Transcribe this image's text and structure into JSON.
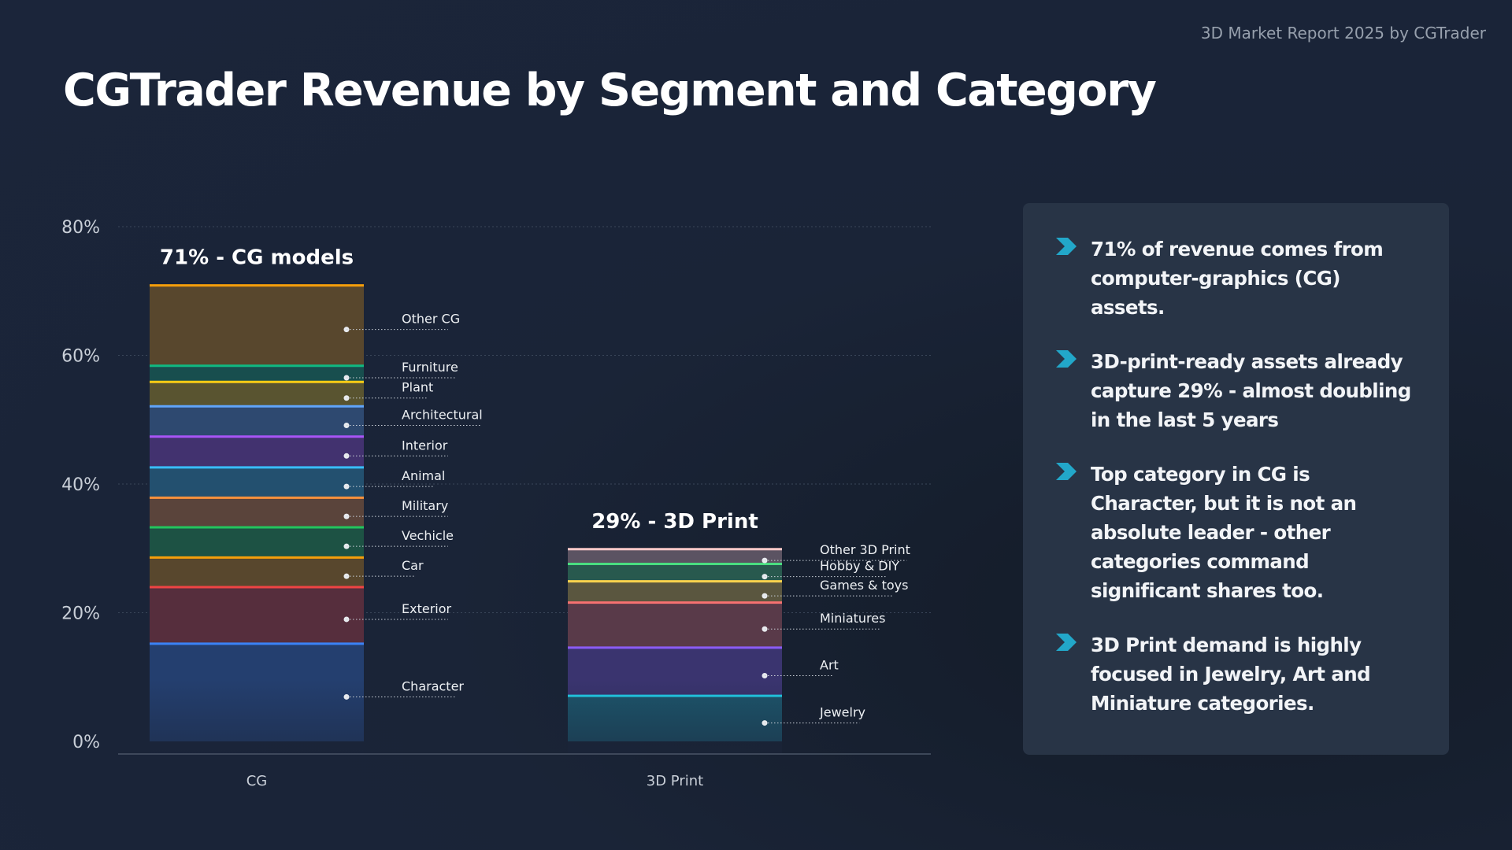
{
  "source": "3D Market Report 2025 by CGTrader",
  "title": "CGTrader Revenue by Segment and Category",
  "chart_data": {
    "type": "bar",
    "stacked": true,
    "ylim": [
      0,
      80
    ],
    "yticks": [
      "0%",
      "20%",
      "40%",
      "60%",
      "80%"
    ],
    "grid": true,
    "categories": [
      "CG",
      "3D Print"
    ],
    "bars": [
      {
        "category": "CG",
        "annotation": "71% - CG models",
        "segments": [
          {
            "name": "Character",
            "value": 15.3,
            "color": "#3b82f6"
          },
          {
            "name": "Exterior",
            "value": 8.8,
            "color": "#ef4444"
          },
          {
            "name": "Car",
            "value": 4.6,
            "color": "#f59e0b"
          },
          {
            "name": "Vechicle",
            "value": 4.7,
            "color": "#22c55e"
          },
          {
            "name": "Military",
            "value": 4.6,
            "color": "#fb923c"
          },
          {
            "name": "Animal",
            "value": 4.7,
            "color": "#38bdf8"
          },
          {
            "name": "Interior",
            "value": 4.8,
            "color": "#a855f7"
          },
          {
            "name": "Architectural",
            "value": 4.7,
            "color": "#60a5fa"
          },
          {
            "name": "Plant",
            "value": 3.8,
            "color": "#facc15"
          },
          {
            "name": "Furniture",
            "value": 2.5,
            "color": "#10b981"
          },
          {
            "name": "Other CG",
            "value": 12.5,
            "color": "#f59e0b"
          }
        ]
      },
      {
        "category": "3D Print",
        "annotation": "29% - 3D Print",
        "segments": [
          {
            "name": "Jewelry",
            "value": 7.2,
            "color": "#22d3ee"
          },
          {
            "name": "Art",
            "value": 7.5,
            "color": "#8b5cf6"
          },
          {
            "name": "Miniatures",
            "value": 7.0,
            "color": "#f87171"
          },
          {
            "name": "Games & toys",
            "value": 3.3,
            "color": "#fcd34d"
          },
          {
            "name": "Hobby & DIY",
            "value": 2.7,
            "color": "#4ade80"
          },
          {
            "name": "Other 3D Print",
            "value": 2.3,
            "color": "#fecaca"
          }
        ]
      }
    ]
  },
  "insights": [
    "71% of revenue comes from computer-graphics (CG) assets.",
    "3D-print-ready assets already capture 29% - almost doubling in the last 5 years",
    "Top category in CG is Character, but it is not an absolute leader - other categories command significant shares too.",
    "3D Print demand is highly focused in Jewelry, Art and Miniature categories."
  ],
  "colors": {
    "background": "#1b253a",
    "panel": "#283446",
    "accent": "#22a7c9"
  },
  "icons": {
    "insight_bullet": "chevron-right-icon"
  }
}
